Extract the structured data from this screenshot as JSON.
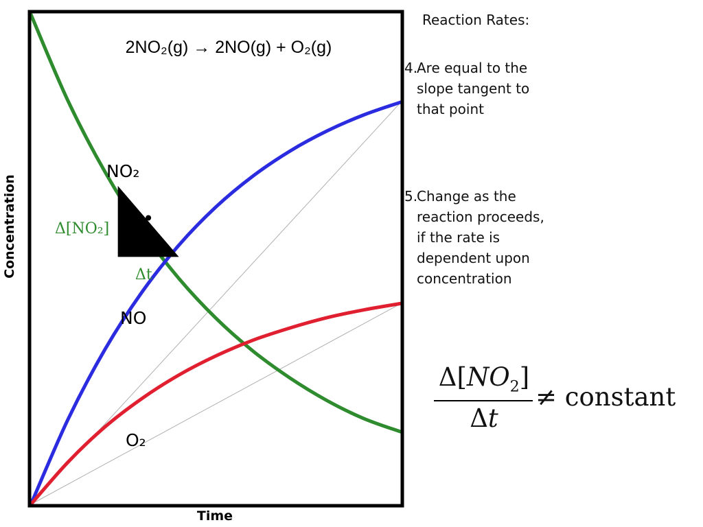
{
  "chart_data": {
    "type": "line",
    "title": "2NO₂(g) → 2NO(g) + O₂(g)",
    "xlabel": "Time",
    "ylabel": "Concentration",
    "xlim": [
      0,
      10
    ],
    "ylim": [
      0,
      10
    ],
    "series": [
      {
        "name": "NO₂",
        "color": "#2e8b2e",
        "x": [
          0,
          1,
          2,
          3,
          4,
          5,
          6,
          7,
          8,
          9,
          10
        ],
        "y": [
          10.0,
          8.24,
          6.79,
          5.59,
          4.61,
          3.8,
          3.13,
          2.58,
          2.12,
          1.75,
          1.48
        ]
      },
      {
        "name": "NO",
        "color": "#2b2be0",
        "x": [
          0,
          1,
          2,
          3,
          4,
          5,
          6,
          7,
          8,
          9,
          10
        ],
        "y": [
          0.0,
          1.73,
          3.16,
          4.33,
          5.29,
          6.07,
          6.7,
          7.21,
          7.62,
          7.95,
          8.21
        ]
      },
      {
        "name": "O₂",
        "color": "#e02030",
        "x": [
          0,
          1,
          2,
          3,
          4,
          5,
          6,
          7,
          8,
          9,
          10
        ],
        "y": [
          0.0,
          0.86,
          1.58,
          2.16,
          2.64,
          3.03,
          3.35,
          3.6,
          3.81,
          3.97,
          4.1
        ]
      }
    ],
    "secants": [
      {
        "x": [
          0,
          10
        ],
        "y": [
          0,
          8.21
        ]
      },
      {
        "x": [
          0,
          10
        ],
        "y": [
          0,
          4.1
        ]
      }
    ],
    "triangle": {
      "label_dy": "Δ[NO₂]",
      "label_dx": "Δt",
      "x": [
        2.35,
        4.0
      ],
      "y": [
        6.5,
        5.05
      ]
    }
  },
  "text": {
    "heading": "Reaction Rates:",
    "point4": {
      "num": "4.",
      "text": "Are equal to the\nslope tangent to\nthat point"
    },
    "point5": {
      "num": "5.",
      "text": "Change as the\nreaction proceeds,\nif the rate is\ndependent upon\nconcentration"
    }
  },
  "formula": {
    "delta": "Δ",
    "open": "[",
    "species": "NO",
    "sub": "2",
    "close": "]",
    "den_delta": "Δ",
    "den_var": "t",
    "relation": "≠ constant"
  },
  "colors": {
    "no2": "#2e8b2e",
    "no": "#2b2be0",
    "o2": "#e02030",
    "frame": "#000000"
  }
}
